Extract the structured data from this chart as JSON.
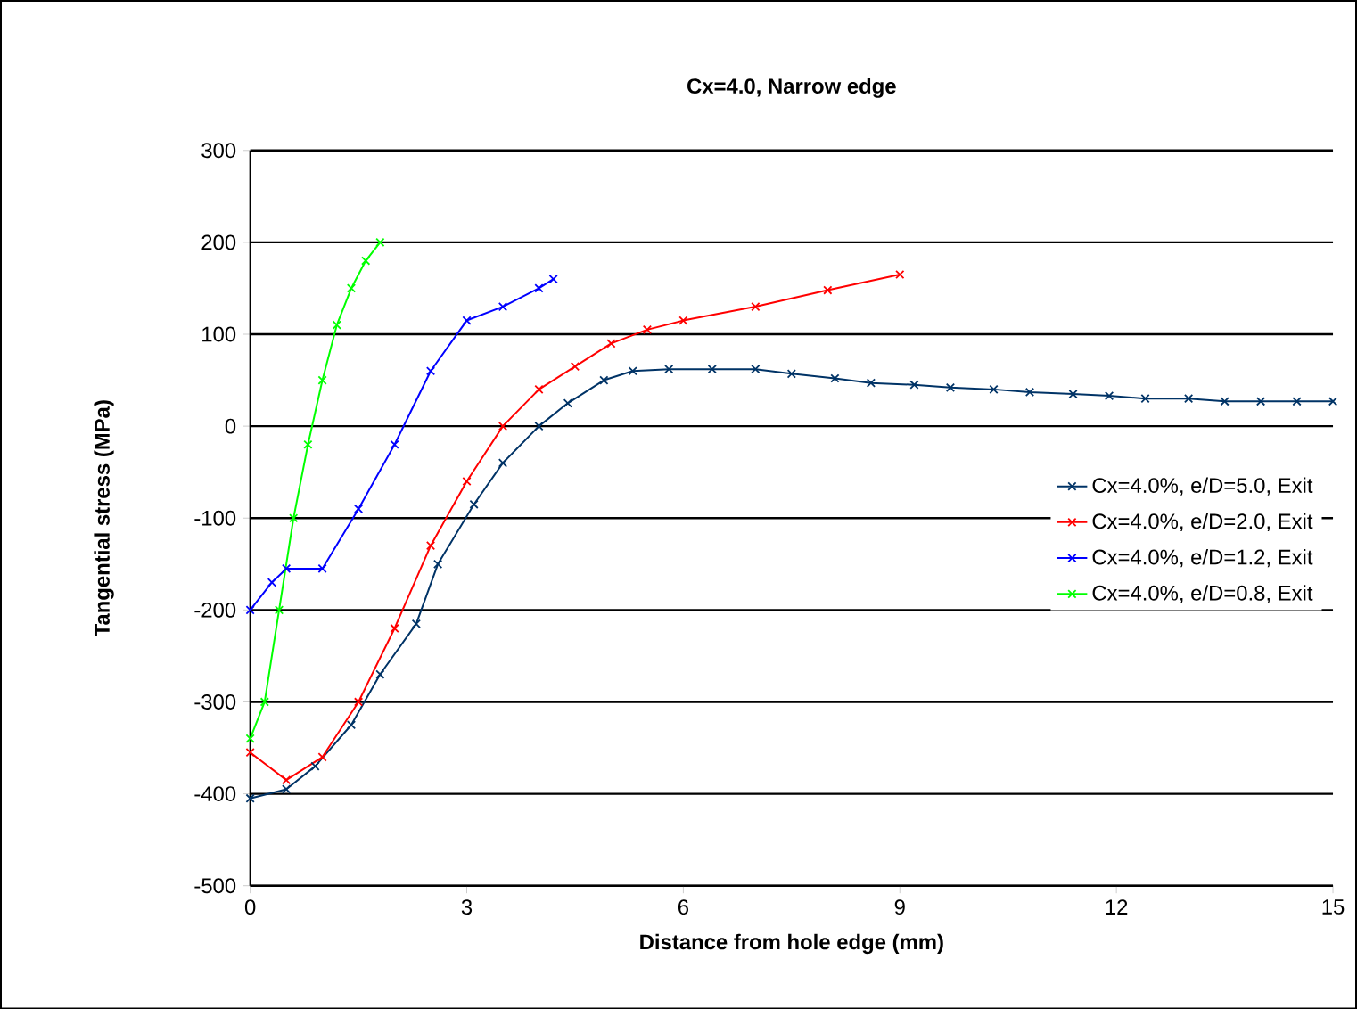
{
  "chart_data": {
    "type": "line",
    "title": "Cx=4.0,  Narrow edge",
    "xlabel": "Distance from hole edge (mm)",
    "ylabel": "Tangential stress (MPa)",
    "xlim": [
      0,
      15
    ],
    "ylim": [
      -500,
      300
    ],
    "xticks": [
      0,
      3,
      6,
      9,
      12,
      15
    ],
    "yticks": [
      -500,
      -400,
      -300,
      -200,
      -100,
      0,
      100,
      200,
      300
    ],
    "grid": "y",
    "legend": "right",
    "marker": "cross",
    "series": [
      {
        "name": "Cx=4.0%, e/D=5.0, Exit",
        "color": "#003366",
        "x": [
          0,
          0.5,
          0.9,
          1.4,
          1.8,
          2.3,
          2.6,
          3.1,
          3.5,
          4.0,
          4.4,
          4.9,
          5.3,
          5.8,
          6.4,
          7.0,
          7.5,
          8.1,
          8.6,
          9.2,
          9.7,
          10.3,
          10.8,
          11.4,
          11.9,
          12.4,
          13.0,
          13.5,
          14.0,
          14.5,
          15.0
        ],
        "values": [
          -405,
          -395,
          -370,
          -325,
          -270,
          -215,
          -150,
          -85,
          -40,
          0,
          25,
          50,
          60,
          62,
          62,
          62,
          57,
          52,
          47,
          45,
          42,
          40,
          37,
          35,
          33,
          30,
          30,
          27,
          27,
          27,
          27
        ]
      },
      {
        "name": "Cx=4.0%, e/D=2.0, Exit",
        "color": "#ff0000",
        "x": [
          0,
          0.5,
          1.0,
          1.5,
          2.0,
          2.5,
          3.0,
          3.5,
          4.0,
          4.5,
          5.0,
          5.5,
          6.0,
          7.0,
          8.0,
          9.0
        ],
        "values": [
          -355,
          -385,
          -360,
          -300,
          -220,
          -130,
          -60,
          0,
          40,
          65,
          90,
          105,
          115,
          130,
          148,
          165
        ]
      },
      {
        "name": "Cx=4.0%, e/D=1.2, Exit",
        "color": "#0000ff",
        "x": [
          0,
          0.3,
          0.5,
          1.0,
          1.5,
          2.0,
          2.5,
          3.0,
          3.5,
          4.0,
          4.2
        ],
        "values": [
          -200,
          -170,
          -155,
          -155,
          -90,
          -20,
          60,
          115,
          130,
          150,
          160
        ]
      },
      {
        "name": "Cx=4.0%, e/D=0.8, Exit",
        "color": "#00ff00",
        "x": [
          0,
          0.2,
          0.4,
          0.6,
          0.8,
          1.0,
          1.2,
          1.4,
          1.6,
          1.8
        ],
        "values": [
          -340,
          -300,
          -200,
          -100,
          -20,
          50,
          110,
          150,
          180,
          200
        ]
      }
    ]
  }
}
